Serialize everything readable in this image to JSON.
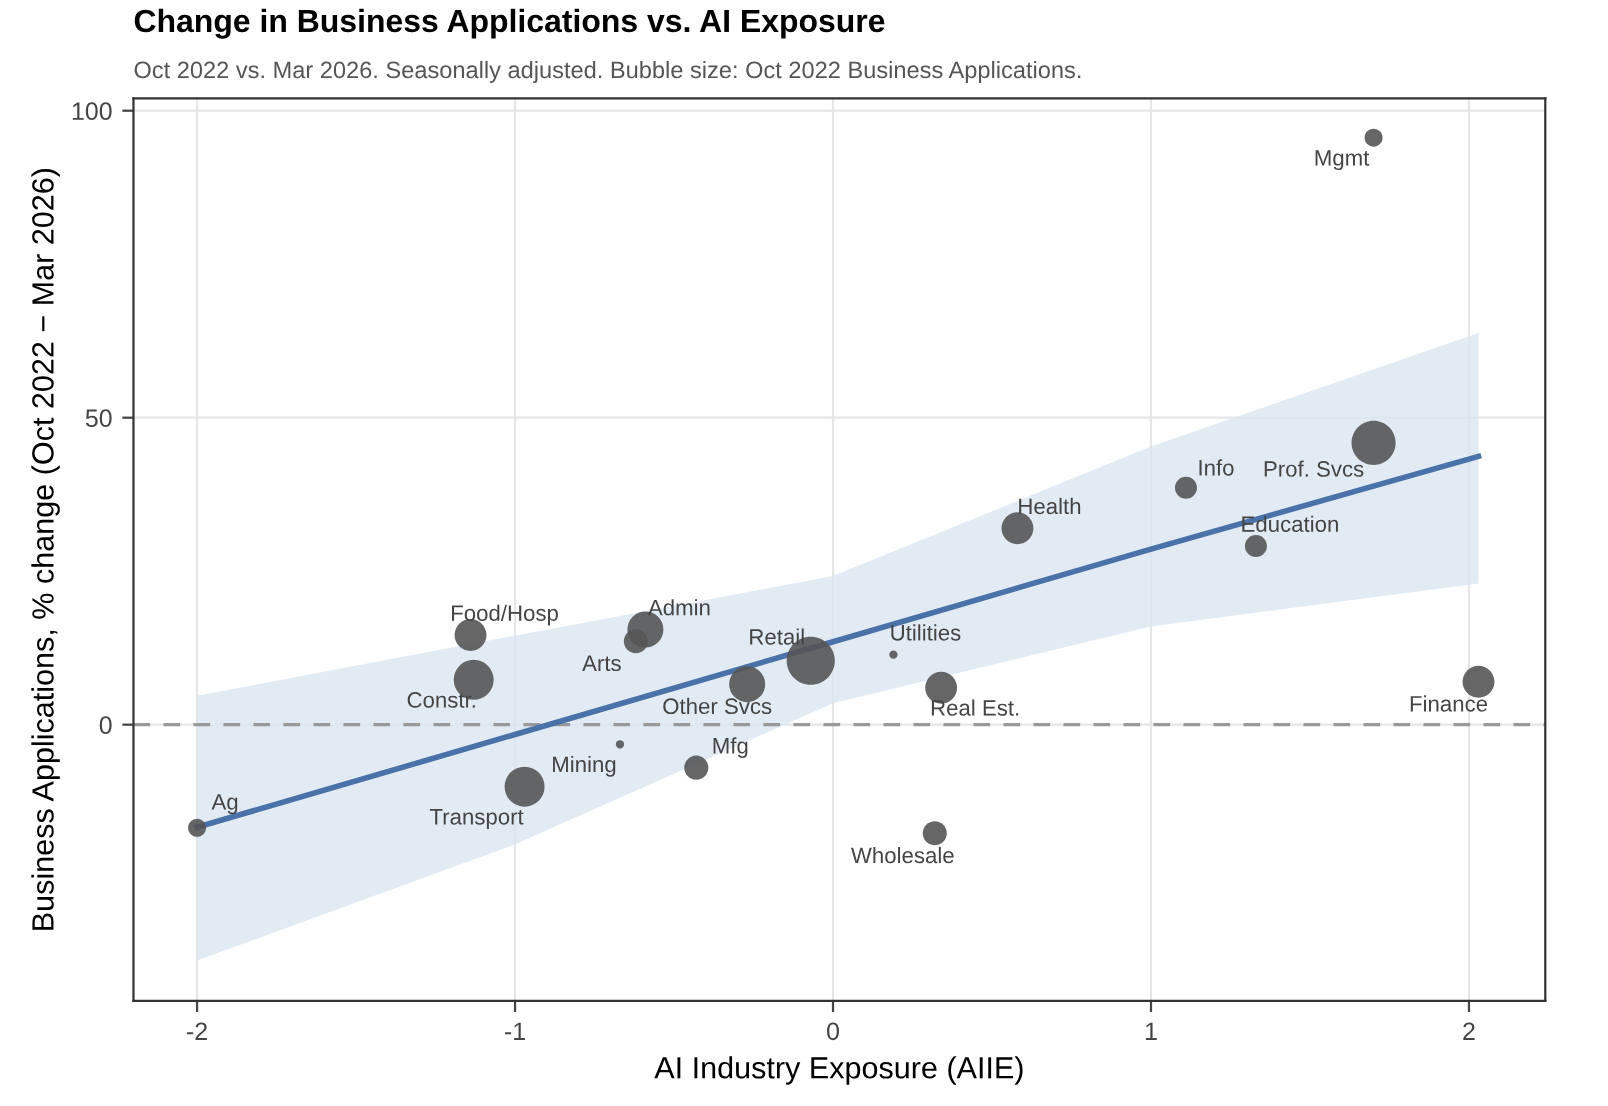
{
  "chart_data": {
    "type": "bubble",
    "title": "Change in Business Applications vs. AI Exposure",
    "subtitle": "Oct 2022 vs. Mar 2026. Seasonally adjusted. Bubble size: Oct 2022 Business Applications.",
    "xlabel": "AI Industry Exposure (AIIE)",
    "ylabel": "Business Applications, % change (Oct 2022 − Mar 2026)",
    "xlim": [
      -2.2,
      2.24
    ],
    "xticks": [
      -2,
      -1,
      0,
      1,
      2
    ],
    "ylim": [
      -45,
      102
    ],
    "yticks": [
      0,
      50,
      100
    ],
    "grid": true,
    "series": [
      {
        "color": "#555555",
        "x": [
          -2.0,
          -0.97,
          -0.67,
          -0.43,
          0.32,
          -1.13,
          -1.14,
          -0.62,
          -0.59,
          -0.07,
          -0.27,
          0.19,
          0.34,
          0.58,
          1.11,
          1.33,
          1.7,
          1.7,
          2.03
        ],
        "values": [
          -16.8,
          -10.1,
          -3.2,
          -7,
          -17.7,
          7.3,
          14.6,
          13.6,
          15.5,
          10.4,
          6.6,
          11.4,
          6,
          32,
          38.6,
          29.1,
          45.9,
          95.6,
          7
        ],
        "sizes": [
          0.14,
          0.69,
          0.03,
          0.25,
          0.25,
          0.69,
          0.44,
          0.25,
          0.56,
          1,
          0.56,
          0.03,
          0.44,
          0.44,
          0.21,
          0.21,
          0.84,
          0.14,
          0.44
        ]
      },
      {
        "type": "line",
        "color": "#4a72a8",
        "x": [
          -2,
          -1,
          0,
          1,
          2.03
        ],
        "values": [
          -16.7,
          -1.6,
          13.5,
          28.6,
          43.7
        ],
        "lower": [
          -38.4,
          -19.5,
          3.5,
          16,
          23
        ],
        "upper": [
          4.7,
          14.5,
          24.2,
          45.3,
          63.8
        ]
      }
    ],
    "ref_lines": [
      {
        "axis": "y",
        "value": 0,
        "color": "#999999",
        "line_style": "dashed"
      }
    ],
    "annotations": [
      {
        "text": "Ag",
        "x": -2.0,
        "y": -16.8
      },
      {
        "text": "Transport",
        "x": -0.97,
        "y": -10.1
      },
      {
        "text": "Mining",
        "x": -0.67,
        "y": -3.2
      },
      {
        "text": "Mfg",
        "x": -0.43,
        "y": -7
      },
      {
        "text": "Wholesale",
        "x": 0.32,
        "y": -17.7
      },
      {
        "text": "Constr.",
        "x": -1.13,
        "y": 7.3
      },
      {
        "text": "Food/Hosp",
        "x": -1.14,
        "y": 14.6
      },
      {
        "text": "Arts",
        "x": -0.62,
        "y": 13.6
      },
      {
        "text": "Admin",
        "x": -0.59,
        "y": 15.5
      },
      {
        "text": "Retail",
        "x": -0.07,
        "y": 10.4
      },
      {
        "text": "Other Svcs",
        "x": -0.27,
        "y": 6.6
      },
      {
        "text": "Utilities",
        "x": 0.19,
        "y": 11.4
      },
      {
        "text": "Real Est.",
        "x": 0.34,
        "y": 6
      },
      {
        "text": "Health",
        "x": 0.58,
        "y": 32
      },
      {
        "text": "Info",
        "x": 1.11,
        "y": 38.6
      },
      {
        "text": "Education",
        "x": 1.33,
        "y": 29.1
      },
      {
        "text": "Prof. Svcs",
        "x": 1.7,
        "y": 45.9
      },
      {
        "text": "Mgmt",
        "x": 1.7,
        "y": 95.6
      },
      {
        "text": "Finance",
        "x": 2.03,
        "y": 7
      }
    ]
  }
}
